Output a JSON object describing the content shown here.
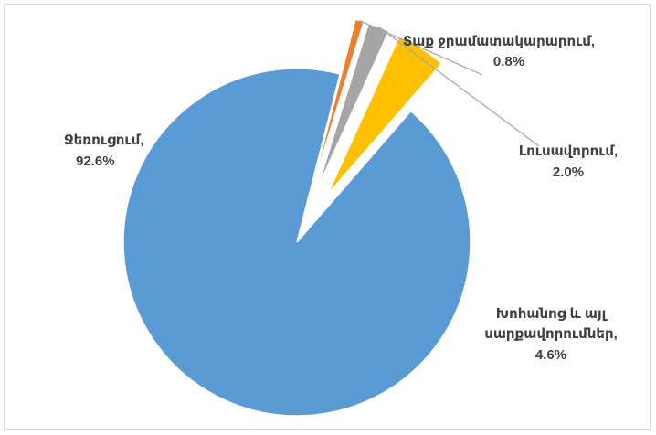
{
  "chart_data": {
    "type": "pie",
    "slices": [
      {
        "name": "Ջեռուցում,",
        "value": 92.6,
        "value_label": "92.6%",
        "color": "#5b9bd5"
      },
      {
        "name": "Տաք ջրամատակարարում,",
        "value": 0.8,
        "value_label": "0.8%",
        "color": "#ed7d31"
      },
      {
        "name": "Լուսավորում,",
        "value": 2.0,
        "value_label": "2.0%",
        "color": "#a5a5a5"
      },
      {
        "name": "Խոհանոց և այլ սարքավորումներ,",
        "name_lines": [
          "Խոհանոց և այլ",
          "սարքավորումներ,"
        ],
        "value": 4.6,
        "value_label": "4.6%",
        "color": "#ffc000"
      }
    ]
  }
}
